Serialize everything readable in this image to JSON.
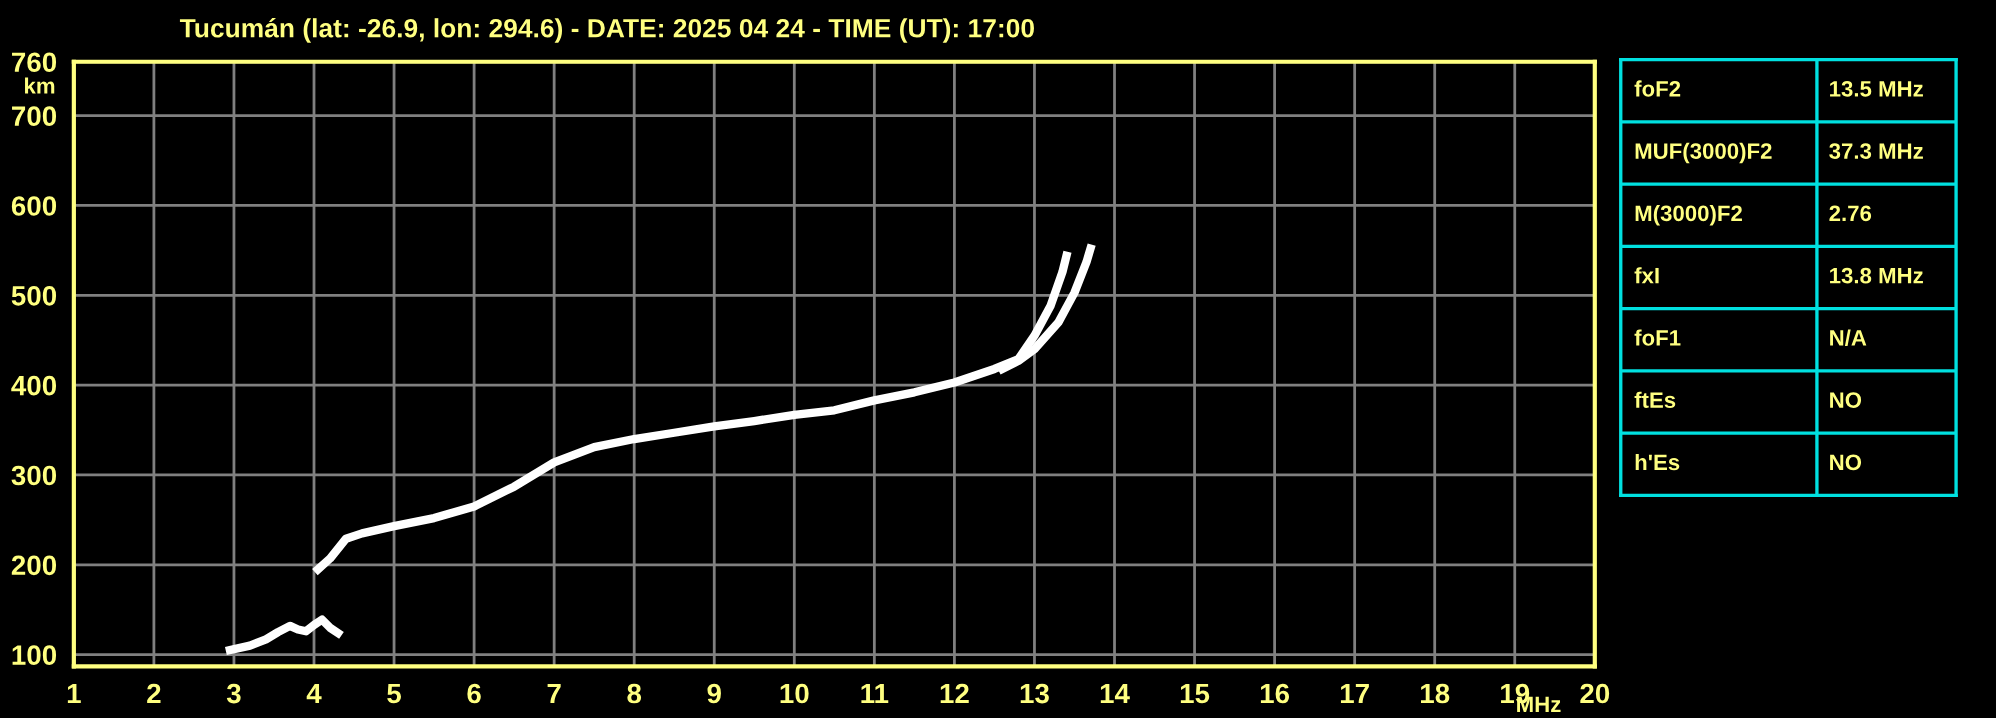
{
  "chart_data": [
    {
      "type": "line",
      "title": "Tucumán (lat: -26.9, lon: 294.6) - DATE: 2025 04 24 - TIME (UT): 17:00",
      "xlabel": "MHz",
      "ylabel": "km",
      "xlim": [
        1,
        20
      ],
      "ylim": [
        87,
        760
      ],
      "xticks": [
        1,
        2,
        3,
        4,
        5,
        6,
        7,
        8,
        9,
        10,
        11,
        12,
        13,
        14,
        15,
        16,
        17,
        18,
        19,
        20
      ],
      "yticks": [
        100,
        200,
        300,
        400,
        500,
        600,
        700,
        760
      ],
      "grid": true,
      "line_style": "solid",
      "marker": "none",
      "series": [
        {
          "color": "#ffffff",
          "x": [
            2.95,
            3.2,
            3.4,
            3.55,
            3.7,
            3.8,
            3.9,
            4.0,
            4.1,
            4.2,
            4.3
          ],
          "values": [
            105,
            110,
            117,
            125,
            132,
            128,
            126,
            133,
            139,
            130,
            124
          ]
        },
        {
          "color": "#ffffff",
          "x": [
            4.05,
            4.2,
            4.4,
            4.6,
            5.0,
            5.5,
            6.0,
            6.5,
            7.0,
            7.5,
            8.0,
            8.5,
            9.0,
            9.5,
            10.0,
            10.5,
            11.0,
            11.5,
            12.0,
            12.5,
            12.8,
            13.0,
            13.2,
            13.35,
            13.4
          ],
          "values": [
            195,
            207,
            229,
            235,
            243,
            252,
            265,
            287,
            314,
            331,
            340,
            347,
            354,
            360,
            367,
            372,
            383,
            392,
            403,
            418,
            429,
            455,
            488,
            526,
            544
          ]
        },
        {
          "color": "#ffffff",
          "x": [
            12.6,
            12.8,
            13.0,
            13.3,
            13.5,
            13.65,
            13.7
          ],
          "values": [
            418,
            427,
            440,
            470,
            503,
            537,
            552
          ]
        }
      ]
    },
    {
      "type": "other",
      "annotations": [
        "foF2",
        "13.5 MHz",
        "MUF(3000)F2",
        "37.3 MHz",
        "M(3000)F2",
        "2.76",
        "fxI",
        "13.8 MHz",
        "foF1",
        "N/A",
        "ftEs",
        "NO",
        "h'Es",
        "NO"
      ]
    }
  ]
}
